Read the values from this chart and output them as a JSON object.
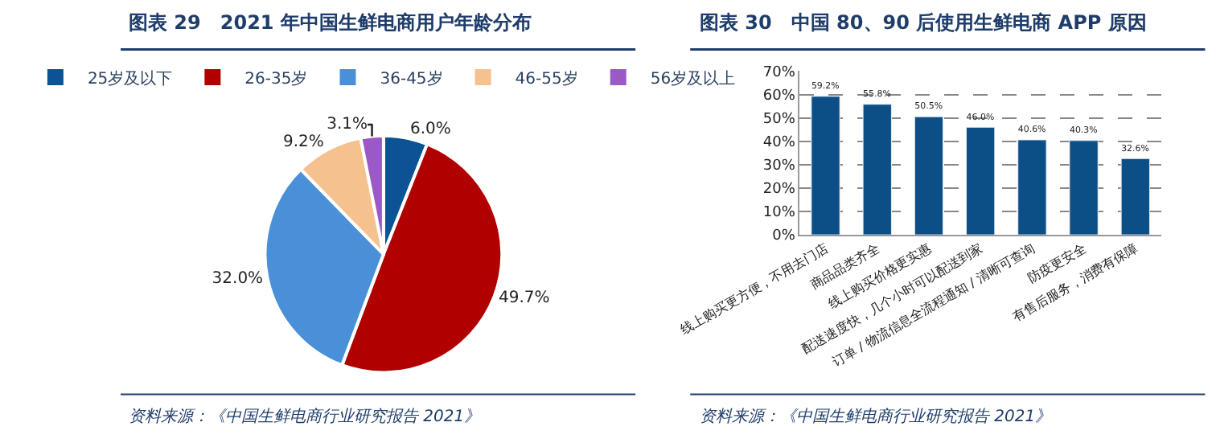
{
  "chart_data": [
    {
      "type": "pie",
      "title": "图表 29　2021 年中国生鲜电商用户年龄分布",
      "categories": [
        "25岁及以下",
        "26-35岁",
        "36-45岁",
        "46-55岁",
        "56岁及以上"
      ],
      "values": [
        6.0,
        49.7,
        32.0,
        9.2,
        3.1
      ],
      "colors": [
        "#0b5394",
        "#b00000",
        "#4a90d9",
        "#f5c28f",
        "#9b59c6"
      ],
      "value_labels": [
        "6.0%",
        "49.7%",
        "32.0%",
        "9.2%",
        "3.1%"
      ],
      "legend": "top",
      "annotations": [
        "资料来源：《中国生鲜电商行业研究报告 2021》"
      ]
    },
    {
      "type": "bar",
      "title": "图表 30　中国 80、90 后使用生鲜电商 APP 原因",
      "categories": [
        "线上购买更方便，不用去门店",
        "商品品类齐全",
        "线上购买价格更实惠",
        "配送速度快，几个小时可以配送到家",
        "订单 / 物流信息全流程通知 / 清晰可查询",
        "防疫更安全",
        "有售后服务，消费有保障"
      ],
      "values": [
        59.2,
        55.8,
        50.5,
        46.0,
        40.6,
        40.3,
        32.6
      ],
      "color": "#0b4f86",
      "value_labels": [
        "59.2%",
        "55.8%",
        "50.5%",
        "46.0%",
        "40.6%",
        "40.3%",
        "32.6%"
      ],
      "ylim": [
        0,
        70
      ],
      "yticks": [
        {
          "value": 0,
          "label": "0%"
        },
        {
          "value": 10,
          "label": "10%"
        },
        {
          "value": 20,
          "label": "20%"
        },
        {
          "value": 30,
          "label": "30%"
        },
        {
          "value": 40,
          "label": "40%"
        },
        {
          "value": 50,
          "label": "50%"
        },
        {
          "value": 60,
          "label": "60%"
        },
        {
          "value": 70,
          "label": "70%"
        }
      ],
      "grid": "y",
      "legend": false,
      "annotations": [
        "资料来源：《中国生鲜电商行业研究报告 2021》"
      ]
    }
  ]
}
